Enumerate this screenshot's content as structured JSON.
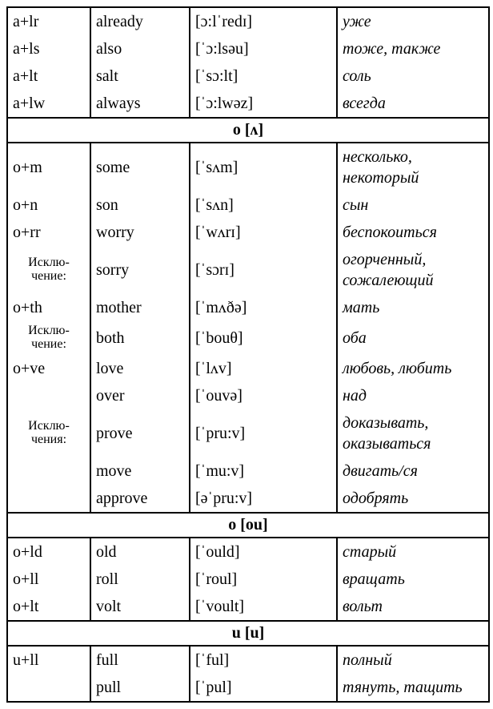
{
  "sections": [
    {
      "header": null,
      "rows": [
        {
          "c1": "a+lr",
          "c2": "already",
          "c3": "[ɔ:lˈredɪ]",
          "c4": "уже"
        },
        {
          "c1": "a+ls",
          "c2": "also",
          "c3": "[ˈɔ:lsəu]",
          "c4": "тоже, также"
        },
        {
          "c1": "a+lt",
          "c2": "salt",
          "c3": "[ˈsɔ:lt]",
          "c4": "соль"
        },
        {
          "c1": "a+lw",
          "c2": "always",
          "c3": "[ˈɔ:lwəz]",
          "c4": "всегда"
        }
      ]
    },
    {
      "header": "o  [ʌ]",
      "rows": [
        {
          "c1": "o+m",
          "c2": "some",
          "c3": "[ˈsʌm]",
          "c4": "несколько, некоторый"
        },
        {
          "c1": "o+n",
          "c2": "son",
          "c3": "[ˈsʌn]",
          "c4": "сын"
        },
        {
          "c1": "o+rr",
          "c2": "worry",
          "c3": "[ˈwʌrɪ]",
          "c4": "беспокоиться"
        },
        {
          "c1": "Исклю-\nчение:",
          "c1small": true,
          "c2": "sorry",
          "c3": "[ˈsɔrɪ]",
          "c4": "огорченный, сожалеющий"
        },
        {
          "c1": "o+th",
          "c2": "mother",
          "c3": "[ˈmʌðə]",
          "c4": "мать"
        },
        {
          "c1": "Исклю-\nчение:",
          "c1small": true,
          "c2": "both",
          "c3": "[ˈbouθ]",
          "c4": "оба"
        },
        {
          "c1": "o+ve",
          "c2": "love",
          "c3": "[ˈlʌv]",
          "c4": "любовь, любить"
        },
        {
          "c1": "",
          "c2": "over",
          "c3": "[ˈouvə]",
          "c4": "над"
        },
        {
          "c1": "Исклю-\nчения:",
          "c1small": true,
          "c2": "prove",
          "c3": "[ˈpru:v]",
          "c4": "доказывать, оказываться"
        },
        {
          "c1": "",
          "c2": "move",
          "c3": "[ˈmu:v]",
          "c4": "двигать/ся"
        },
        {
          "c1": "",
          "c2": "approve",
          "c3": "[əˈpru:v]",
          "c4": "одобрять"
        }
      ]
    },
    {
      "header": "o  [ou]",
      "rows": [
        {
          "c1": "o+ld",
          "c2": "old",
          "c3": "[ˈould]",
          "c4": "старый"
        },
        {
          "c1": "o+ll",
          "c2": "roll",
          "c3": "[ˈroul]",
          "c4": "вращать"
        },
        {
          "c1": "o+lt",
          "c2": "volt",
          "c3": "[ˈvoult]",
          "c4": "вольт"
        }
      ]
    },
    {
      "header": "u  [u]",
      "rows": [
        {
          "c1": "u+ll",
          "c2": "full",
          "c3": "[ˈful]",
          "c4": "полный"
        },
        {
          "c1": "",
          "c2": "pull",
          "c3": "[ˈpul]",
          "c4": "тянуть, тащить"
        }
      ]
    }
  ],
  "style": {
    "font_family": "Times New Roman",
    "body_font_size": 20,
    "small_label_size": 16,
    "border_color": "#000000",
    "background": "#ffffff"
  }
}
